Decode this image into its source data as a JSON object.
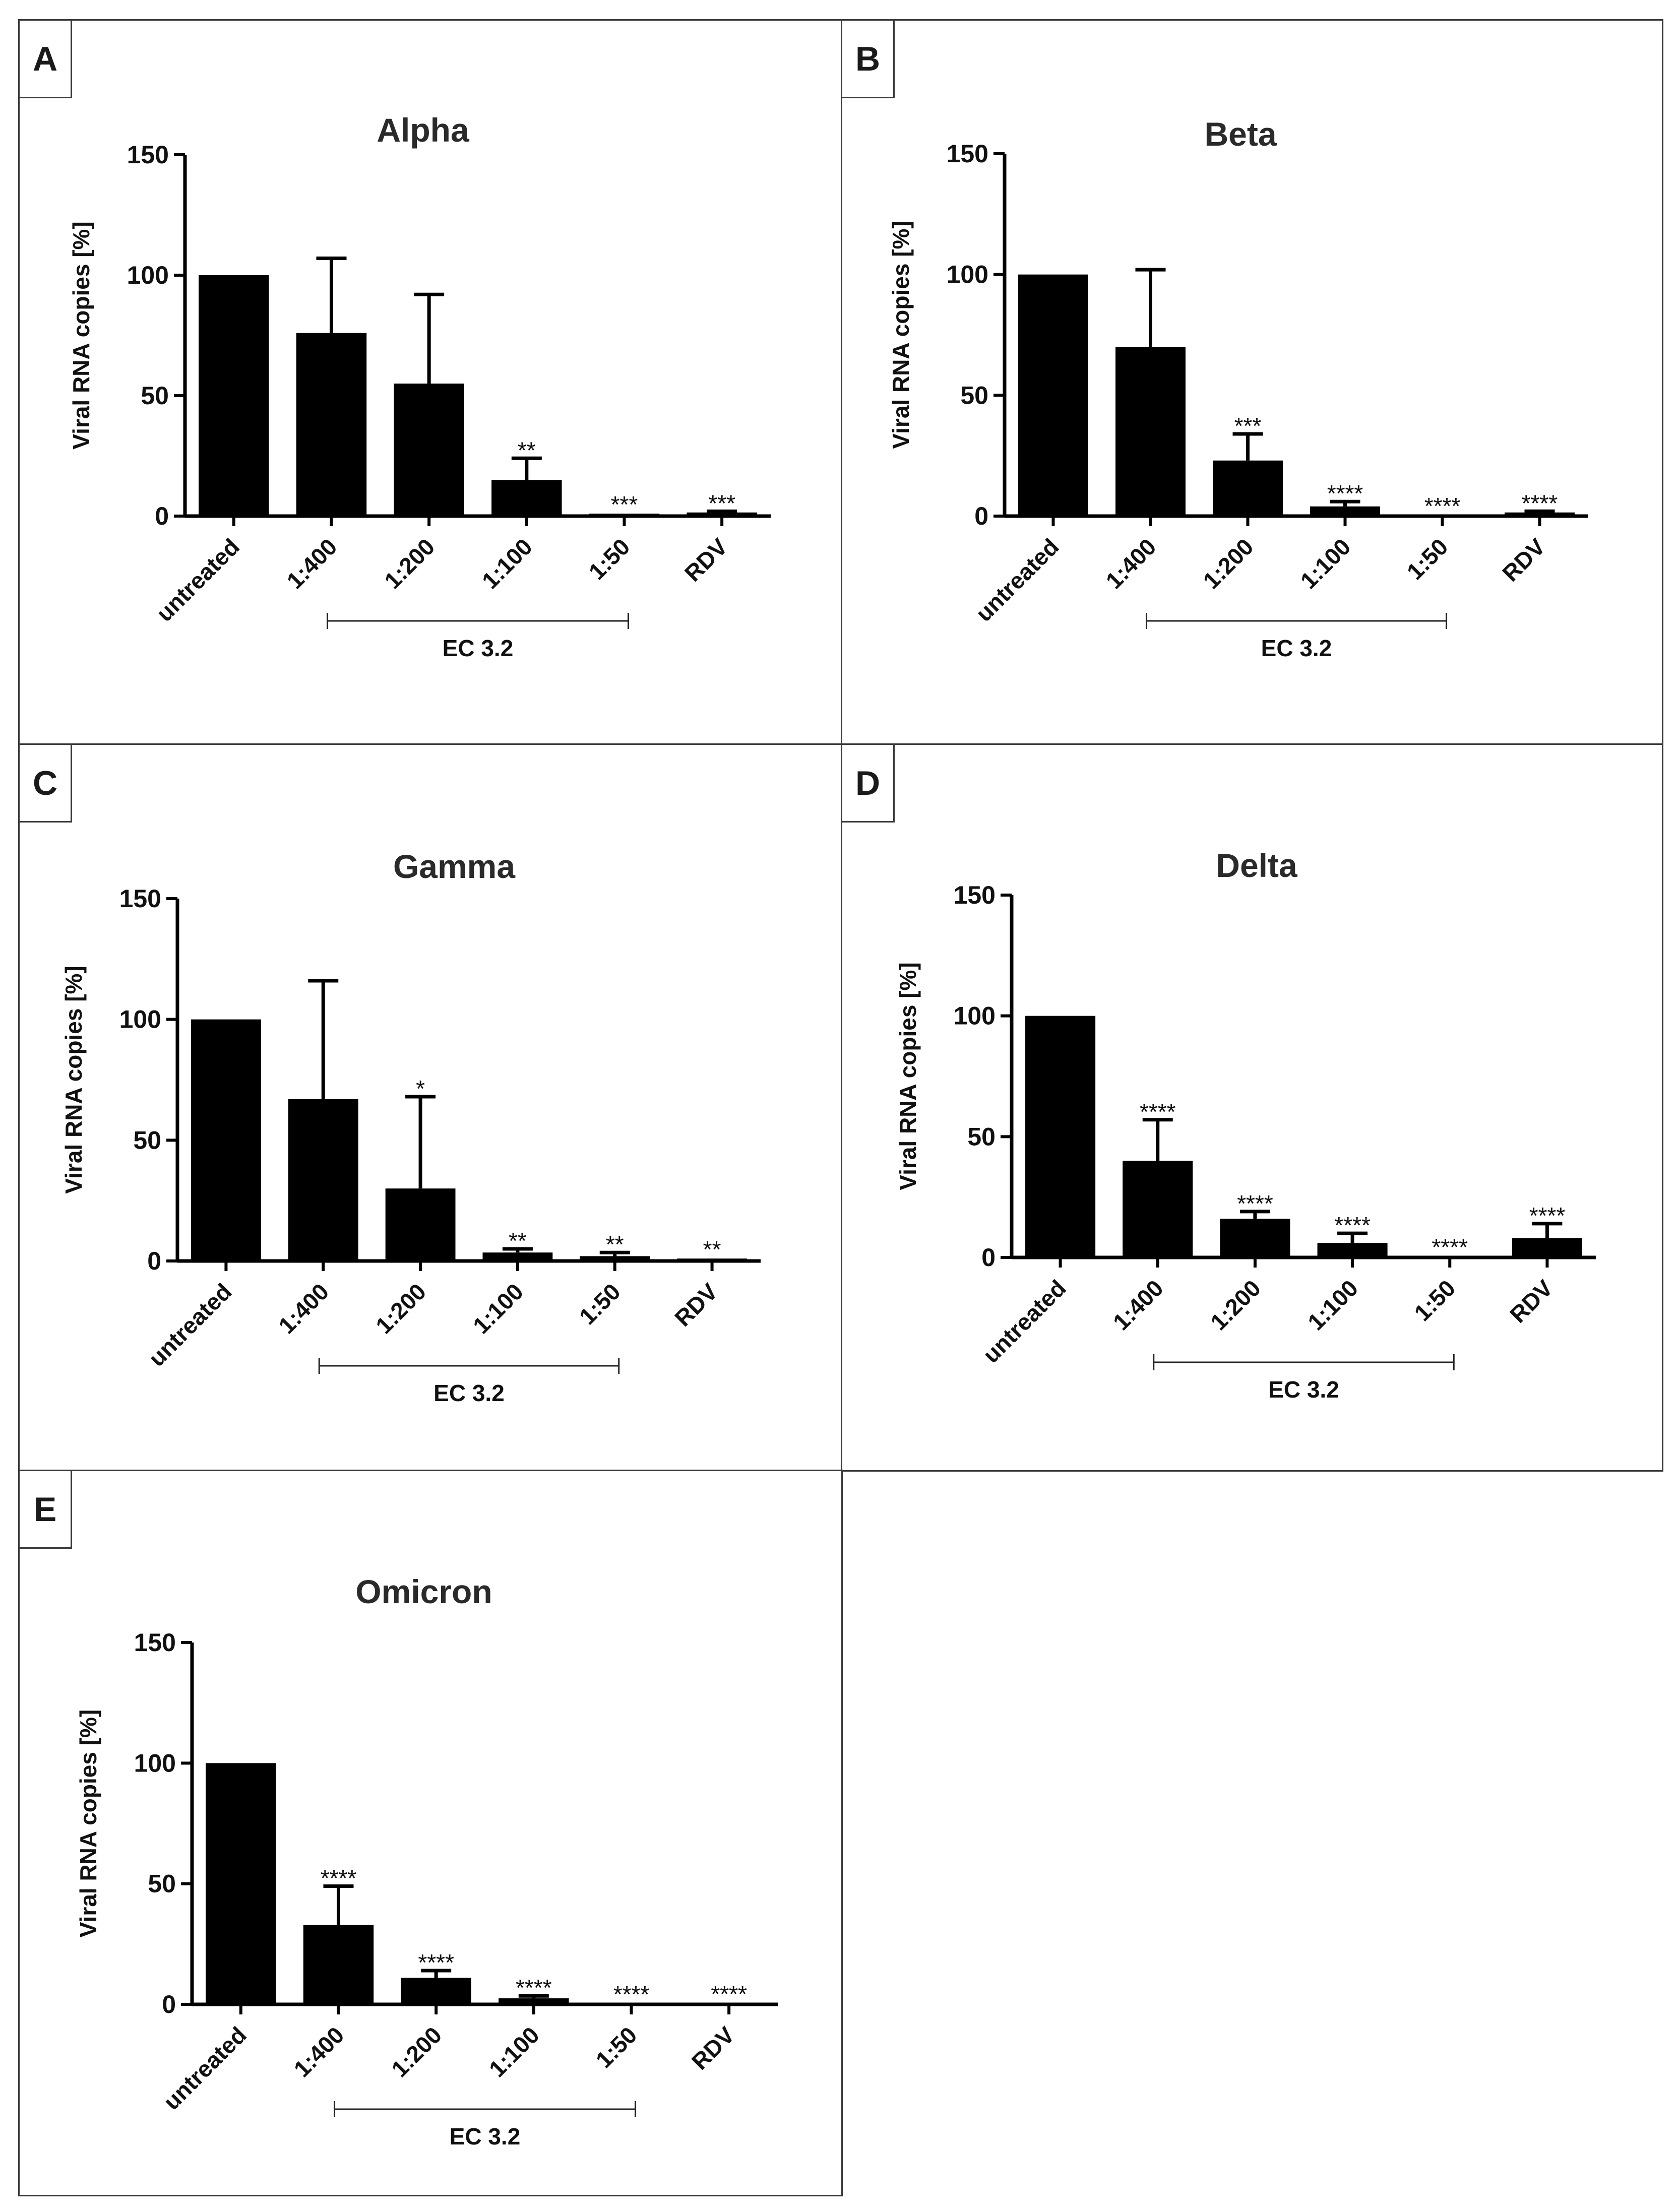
{
  "figure": {
    "bracket_label": "EC 3.2"
  },
  "chart_data": [
    {
      "panel": "A",
      "type": "bar",
      "title": "Alpha",
      "xlabel": "",
      "ylabel": "Viral RNA copies [%]",
      "ylim": [
        0,
        150
      ],
      "yticks": [
        0,
        50,
        100,
        150
      ],
      "categories": [
        "untreated",
        "1:400",
        "1:200",
        "1:100",
        "1:50",
        "RDV"
      ],
      "values": [
        100,
        76,
        55,
        15,
        1,
        1.5
      ],
      "errors": [
        0,
        31,
        37,
        9,
        0.3,
        0.5
      ],
      "significance": [
        "",
        "",
        "",
        "**",
        "***",
        "***"
      ],
      "bracket": {
        "label": "EC 3.2",
        "from": "1:400",
        "to": "1:50"
      }
    },
    {
      "panel": "B",
      "type": "bar",
      "title": "Beta",
      "xlabel": "",
      "ylabel": "Viral RNA copies [%]",
      "ylim": [
        0,
        150
      ],
      "yticks": [
        0,
        50,
        100,
        150
      ],
      "categories": [
        "untreated",
        "1:400",
        "1:200",
        "1:100",
        "1:50",
        "RDV"
      ],
      "values": [
        100,
        70,
        23,
        4,
        0.3,
        1.5
      ],
      "errors": [
        0,
        32,
        11,
        2,
        0.2,
        0.5
      ],
      "significance": [
        "",
        "",
        "***",
        "****",
        "****",
        "****"
      ],
      "bracket": {
        "label": "EC 3.2",
        "from": "1:400",
        "to": "1:50"
      }
    },
    {
      "panel": "C",
      "type": "bar",
      "title": "Gamma",
      "xlabel": "",
      "ylabel": "Viral RNA copies [%]",
      "ylim": [
        0,
        150
      ],
      "yticks": [
        0,
        50,
        100,
        150
      ],
      "categories": [
        "untreated",
        "1:400",
        "1:200",
        "1:100",
        "1:50",
        "RDV"
      ],
      "values": [
        100,
        67,
        30,
        3.5,
        2,
        1
      ],
      "errors": [
        0,
        49,
        38,
        1.5,
        1.5,
        0.3
      ],
      "significance": [
        "",
        "",
        "*",
        "**",
        "**",
        "**"
      ],
      "bracket": {
        "label": "EC 3.2",
        "from": "1:400",
        "to": "1:50"
      }
    },
    {
      "panel": "D",
      "type": "bar",
      "title": "Delta",
      "xlabel": "",
      "ylabel": "Viral RNA copies [%]",
      "ylim": [
        0,
        150
      ],
      "yticks": [
        0,
        50,
        100,
        150
      ],
      "categories": [
        "untreated",
        "1:400",
        "1:200",
        "1:100",
        "1:50",
        "RDV"
      ],
      "values": [
        100,
        40,
        16,
        6,
        0.5,
        8
      ],
      "errors": [
        0,
        17,
        3,
        4,
        0.3,
        6
      ],
      "significance": [
        "",
        "****",
        "****",
        "****",
        "****",
        "****"
      ],
      "bracket": {
        "label": "EC 3.2",
        "from": "1:400",
        "to": "1:50"
      }
    },
    {
      "panel": "E",
      "type": "bar",
      "title": "Omicron",
      "xlabel": "",
      "ylabel": "Viral RNA copies [%]",
      "ylim": [
        0,
        150
      ],
      "yticks": [
        0,
        50,
        100,
        150
      ],
      "categories": [
        "untreated",
        "1:400",
        "1:200",
        "1:100",
        "1:50",
        "RDV"
      ],
      "values": [
        100,
        33,
        11,
        2.5,
        0.3,
        0.5
      ],
      "errors": [
        0,
        16,
        3,
        1,
        0.2,
        0.2
      ],
      "significance": [
        "",
        "****",
        "****",
        "****",
        "****",
        "****"
      ],
      "bracket": {
        "label": "EC 3.2",
        "from": "1:400",
        "to": "1:50"
      }
    }
  ]
}
